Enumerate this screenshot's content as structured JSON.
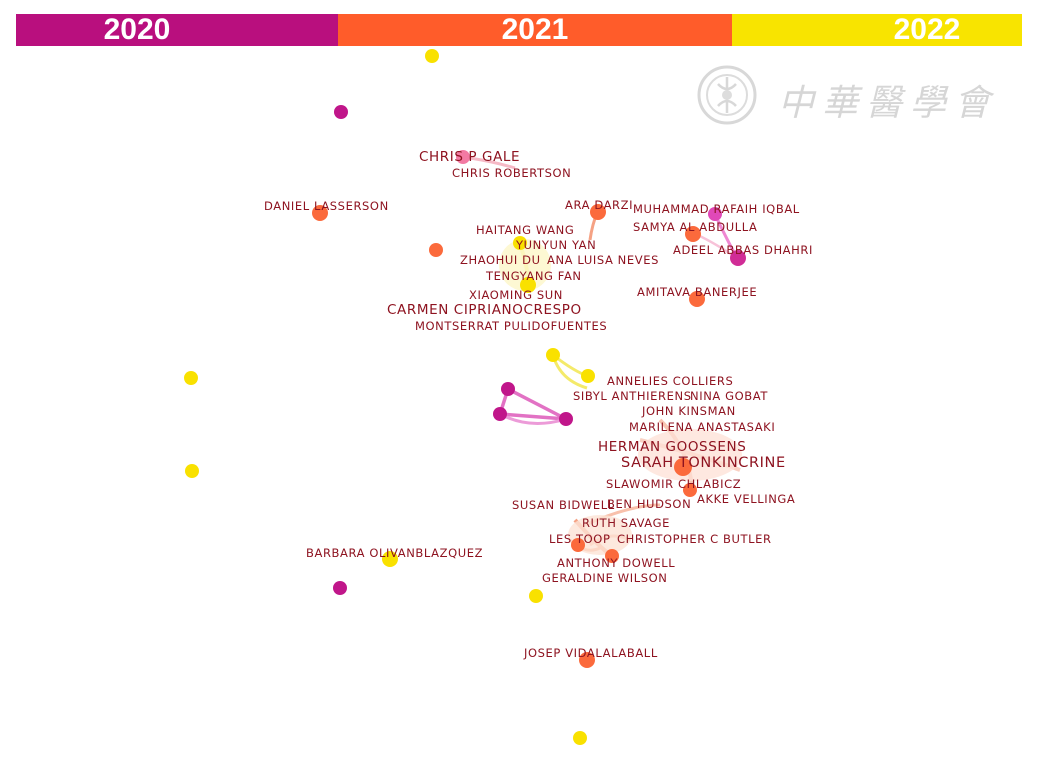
{
  "timeline": {
    "segments": [
      {
        "label": "2020",
        "color": "#b90f7e"
      },
      {
        "label": "2021",
        "color": "#ff5c2a"
      },
      {
        "label": "2022",
        "color": "#f8e400"
      }
    ]
  },
  "watermark": {
    "text": "中華醫學會",
    "icon": "medical-association-seal-icon"
  },
  "colors": {
    "node_2020": "#c0168a",
    "node_2021": "#fb6a3c",
    "node_2022": "#f9e100",
    "label": "#8e1320",
    "edge_2020": "#e272c4",
    "edge_2021": "#f5a284",
    "edge_2022": "#f4ea6a"
  },
  "authors": [
    {
      "name": "CHRIS P GALE",
      "year": 2021
    },
    {
      "name": "CHRIS ROBERTSON",
      "year": 2021
    },
    {
      "name": "DANIEL LASSERSON",
      "year": 2021
    },
    {
      "name": "ARA DARZI",
      "year": 2021
    },
    {
      "name": "MUHAMMAD RAFAIH IQBAL",
      "year": 2020
    },
    {
      "name": "HAITANG WANG",
      "year": 2022
    },
    {
      "name": "SAMYA AL ABDULLA",
      "year": 2021
    },
    {
      "name": "YUNYUN YAN",
      "year": 2022
    },
    {
      "name": "ADEEL ABBAS DHAHRI",
      "year": 2020
    },
    {
      "name": "ZHAOHUI DU",
      "year": 2022
    },
    {
      "name": "ANA LUISA NEVES",
      "year": 2021
    },
    {
      "name": "TENGYANG FAN",
      "year": 2022
    },
    {
      "name": "AMITAVA BANERJEE",
      "year": 2021
    },
    {
      "name": "XIAOMING SUN",
      "year": 2022
    },
    {
      "name": "CARMEN CIPRIANOCRESPO",
      "year": 2021
    },
    {
      "name": "MONTSERRAT PULIDOFUENTES",
      "year": 2021
    },
    {
      "name": "ANNELIES COLLIERS",
      "year": 2022
    },
    {
      "name": "SIBYL ANTHIERENS",
      "year": 2022
    },
    {
      "name": "NINA GOBAT",
      "year": 2021
    },
    {
      "name": "JOHN KINSMAN",
      "year": 2021
    },
    {
      "name": "MARILENA ANASTASAKI",
      "year": 2021
    },
    {
      "name": "HERMAN GOOSSENS",
      "year": 2021
    },
    {
      "name": "SARAH TONKINCRINE",
      "year": 2021
    },
    {
      "name": "SLAWOMIR CHLABICZ",
      "year": 2021
    },
    {
      "name": "AKKE VELLINGA",
      "year": 2021
    },
    {
      "name": "SUSAN BIDWELL",
      "year": 2021
    },
    {
      "name": "BEN HUDSON",
      "year": 2021
    },
    {
      "name": "RUTH SAVAGE",
      "year": 2021
    },
    {
      "name": "LES TOOP",
      "year": 2021
    },
    {
      "name": "CHRISTOPHER C BUTLER",
      "year": 2021
    },
    {
      "name": "BARBARA OLIVANBLAZQUEZ",
      "year": 2022
    },
    {
      "name": "ANTHONY DOWELL",
      "year": 2021
    },
    {
      "name": "GERALDINE WILSON",
      "year": 2021
    },
    {
      "name": "JOSEP VIDALALABALL",
      "year": 2021
    }
  ]
}
